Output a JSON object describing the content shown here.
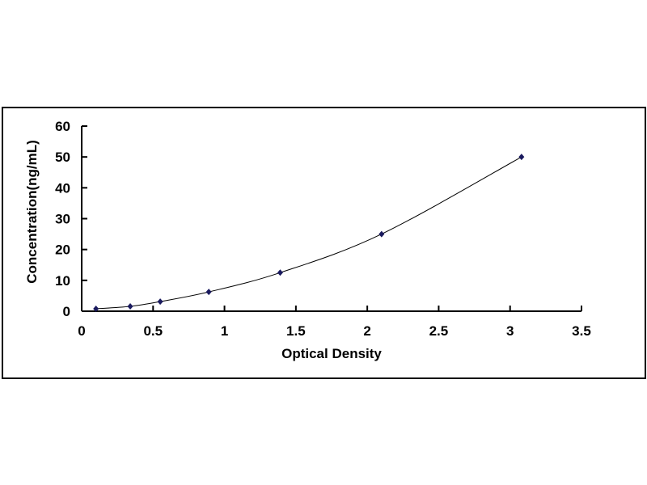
{
  "chart_data": {
    "type": "scatter",
    "title": "",
    "xlabel": "Optical Density",
    "ylabel": "Concentration(ng/mL)",
    "xlim": [
      0,
      3.5
    ],
    "ylim": [
      0,
      60
    ],
    "xticks": [
      "0",
      "0.5",
      "1",
      "1.5",
      "2",
      "2.5",
      "3",
      "3.5"
    ],
    "yticks": [
      "0",
      "10",
      "20",
      "30",
      "40",
      "50",
      "60"
    ],
    "grid": false,
    "legend": "none",
    "marker_color": "#1a1a5e",
    "line_color": "#000000",
    "trendline": "smooth curve through points",
    "series": [
      {
        "x": [
          0.1,
          0.34,
          0.55,
          0.89,
          1.39,
          2.1,
          3.08
        ],
        "y": [
          0.78,
          1.56,
          3.12,
          6.25,
          12.5,
          25,
          50
        ]
      }
    ]
  }
}
